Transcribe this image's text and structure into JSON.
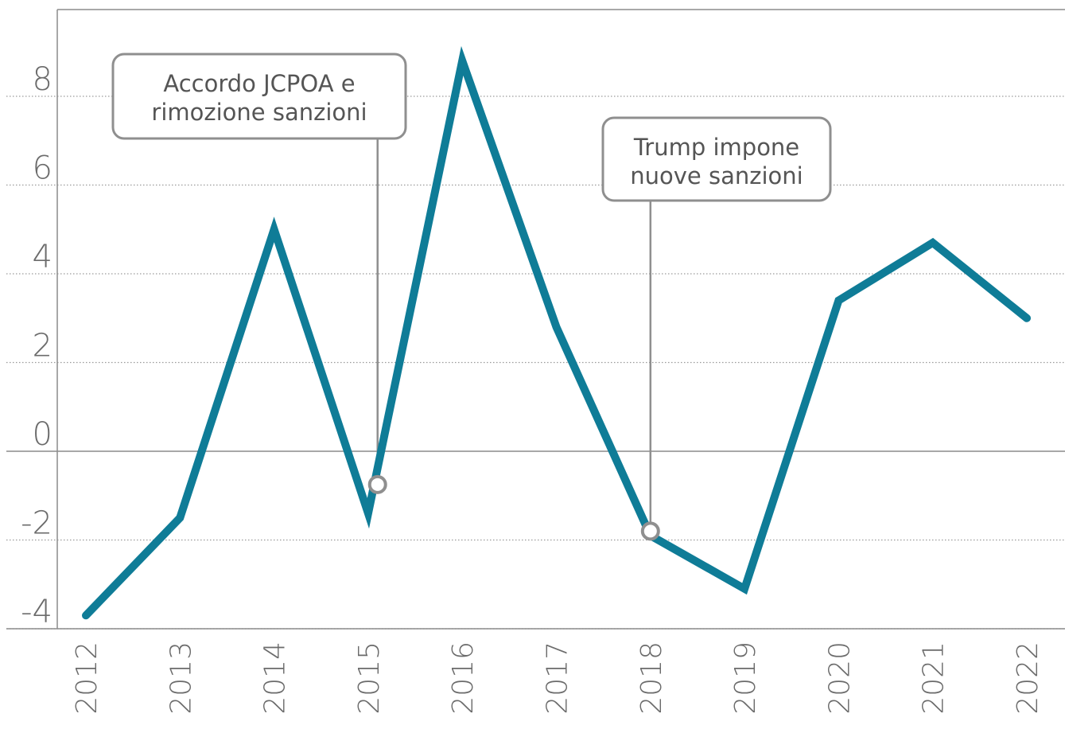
{
  "chart_data": {
    "type": "line",
    "x": [
      2012,
      2013,
      2014,
      2015,
      2016,
      2017,
      2018,
      2019,
      2020,
      2021,
      2022
    ],
    "categories": [
      "2012",
      "2013",
      "2014",
      "2015",
      "2016",
      "2017",
      "2018",
      "2019",
      "2020",
      "2021",
      "2022"
    ],
    "series": [
      {
        "values": [
          -3.7,
          -1.5,
          5.0,
          -1.4,
          8.8,
          2.8,
          -1.9,
          -3.1,
          3.4,
          4.7,
          3.0
        ]
      }
    ],
    "yticks": [
      "8",
      "6",
      "4",
      "2",
      "0",
      "-2",
      "-4"
    ],
    "ytick_values": [
      8,
      6,
      4,
      2,
      0,
      -2,
      -4
    ],
    "ylim": [
      -4,
      10
    ],
    "grid": true,
    "line_color": "#0f7c97",
    "annotations": [
      {
        "lines": [
          "Accordo JCPOA e",
          "rimozione sanzioni"
        ],
        "x": 2015.1,
        "y": -0.75
      },
      {
        "lines": [
          "Trump impone",
          "nuove sanzioni"
        ],
        "x": 2018.0,
        "y": -1.8
      }
    ]
  }
}
